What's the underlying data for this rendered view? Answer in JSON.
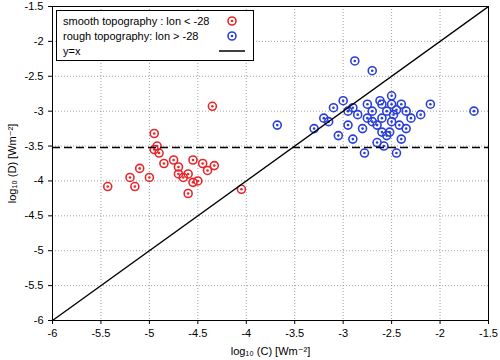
{
  "chart_data": {
    "type": "scatter",
    "x_label": "log₁₀ (C) [Wm⁻²]",
    "y_label": "log₁₀ (D) [Wm⁻²]",
    "xlim": [
      -6,
      -1.5
    ],
    "ylim": [
      -6,
      -1.5
    ],
    "xticks": [
      -6,
      -5.5,
      -5,
      -4.5,
      -4,
      -3.5,
      -3,
      -2.5,
      -2,
      -1.5
    ],
    "yticks": [
      -6,
      -5.5,
      -5,
      -4.5,
      -4,
      -3.5,
      -3,
      -2.5,
      -2,
      -1.5
    ],
    "grid": true,
    "legend": "upper left",
    "series": [
      {
        "name": "smooth topography : lon < -28",
        "color": "#e8262a",
        "marker": "circle",
        "x": [
          -5.43,
          -5.2,
          -5.15,
          -5.1,
          -5.0,
          -4.95,
          -4.92,
          -4.9,
          -4.85,
          -4.75,
          -4.7,
          -4.65,
          -4.6,
          -4.55,
          -4.5,
          -4.45,
          -4.4,
          -4.35,
          -4.33,
          -4.6,
          -4.55,
          -4.05,
          -4.95,
          -4.7
        ],
        "values": [
          -4.08,
          -3.95,
          -4.08,
          -3.82,
          -3.95,
          -3.32,
          -3.5,
          -3.6,
          -3.75,
          -3.7,
          -3.8,
          -3.95,
          -3.9,
          -3.7,
          -4.0,
          -3.75,
          -3.85,
          -2.93,
          -3.78,
          -4.18,
          -4.02,
          -4.12,
          -3.55,
          -3.9
        ]
      },
      {
        "name": "rough topography: lon > -28",
        "color": "#2a3fd8",
        "marker": "circle",
        "x": [
          -3.68,
          -3.3,
          -3.2,
          -3.1,
          -3.05,
          -3.0,
          -2.95,
          -2.9,
          -2.88,
          -2.85,
          -2.8,
          -2.78,
          -2.75,
          -2.7,
          -2.7,
          -2.65,
          -2.62,
          -2.6,
          -2.58,
          -2.55,
          -2.52,
          -2.5,
          -2.48,
          -2.45,
          -2.42,
          -2.4,
          -2.35,
          -2.3,
          -2.6,
          -2.55,
          -2.5,
          -2.45,
          -2.4,
          -2.2,
          -2.1,
          -1.65,
          -3.15,
          -2.9,
          -2.7,
          -2.65,
          -2.75,
          -2.5,
          -2.35,
          -2.95,
          -2.6
        ],
        "values": [
          -3.2,
          -3.25,
          -3.1,
          -2.95,
          -3.35,
          -2.85,
          -3.2,
          -3.4,
          -2.28,
          -3.05,
          -3.25,
          -3.6,
          -2.9,
          -3.0,
          -2.42,
          -3.2,
          -2.85,
          -3.1,
          -3.5,
          -3.0,
          -3.3,
          -2.9,
          -3.05,
          -3.6,
          -3.2,
          -2.9,
          -3.0,
          -3.1,
          -2.9,
          -3.35,
          -3.15,
          -2.98,
          -3.4,
          -3.05,
          -2.9,
          -3.0,
          -3.15,
          -2.95,
          -3.15,
          -3.45,
          -3.1,
          -2.78,
          -3.25,
          -3.0,
          -3.3
        ]
      },
      {
        "name": "y=x",
        "type": "line",
        "color": "#000000",
        "line_style": "solid",
        "x": [
          -6,
          -1.5
        ],
        "values": [
          -6,
          -1.5
        ]
      }
    ],
    "hlines": [
      {
        "value": -3.52,
        "color": "#000000",
        "line_style": "dashed"
      }
    ]
  }
}
